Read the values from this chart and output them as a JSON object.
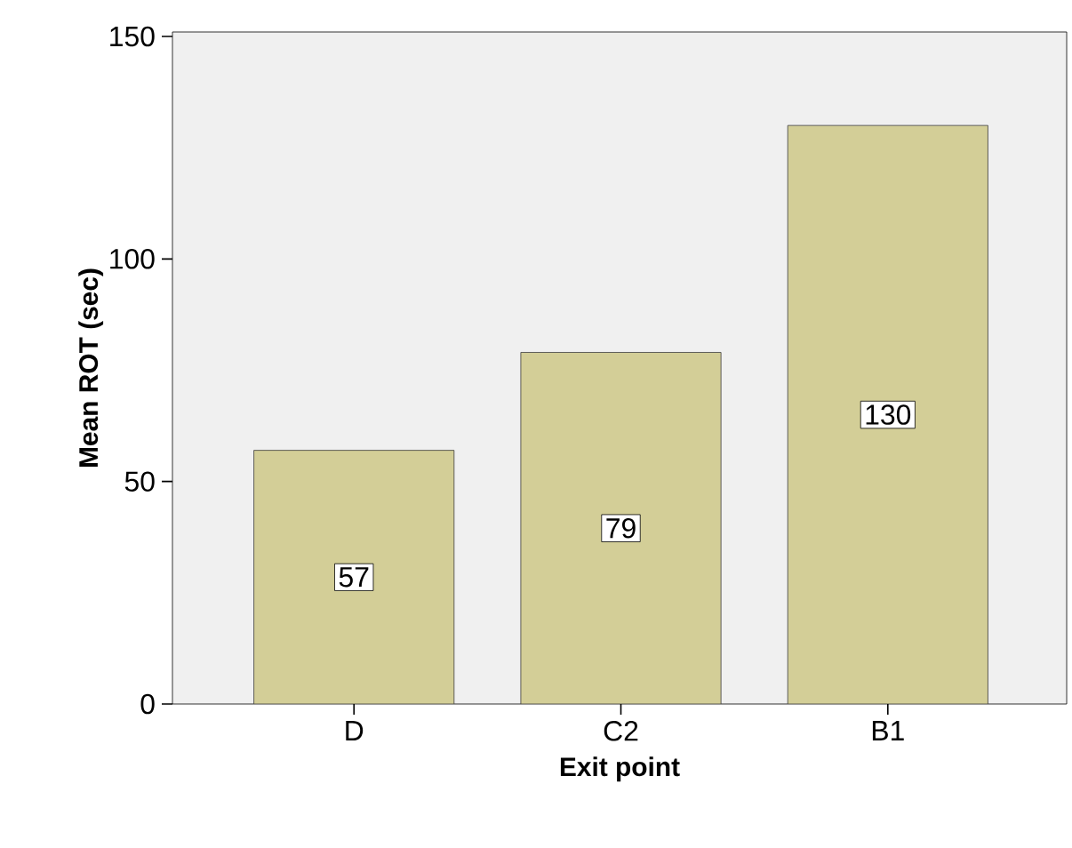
{
  "chart_data": {
    "type": "bar",
    "xlabel": "Exit point",
    "ylabel": "Mean ROT (sec)",
    "categories": [
      "D",
      "C2",
      "B1"
    ],
    "values": [
      57,
      79,
      130
    ],
    "color": "#d3ce97",
    "ylim": [
      0,
      151
    ],
    "yticks": [
      0,
      50,
      100,
      150
    ],
    "data_labels": true
  }
}
